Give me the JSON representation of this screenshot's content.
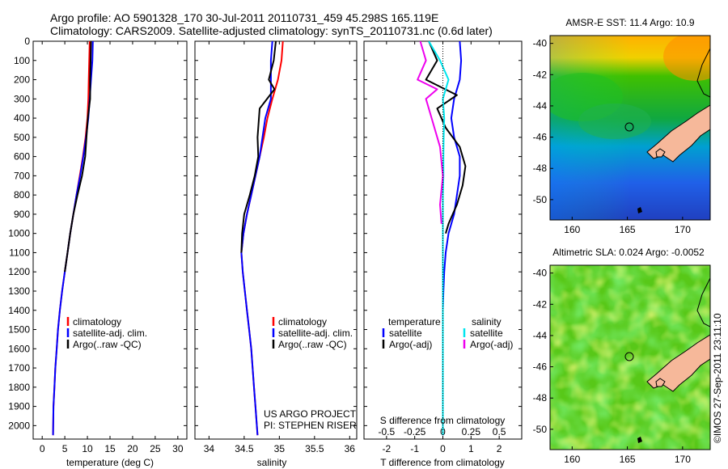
{
  "header": {
    "line1": "Argo profile: AO 5901328_170 30-Jul-2011 20110731_459 45.298S 165.119E",
    "line2": "Climatology: CARS2009. Satellite-adjusted climatology: synTS_20110731.nc (0.6d later)"
  },
  "colors": {
    "climatology": "#ff0000",
    "satellite": "#0000ff",
    "argo": "#000000",
    "salinity_satellite": "#00e5ee",
    "salinity_argo": "#ee00ee",
    "land": "#f6b89a"
  },
  "chart_data": [
    {
      "type": "line",
      "id": "temperature",
      "xlabel": "temperature (deg C)",
      "xlim": [
        -2,
        32
      ],
      "xticks": [
        0,
        5,
        10,
        15,
        20,
        25,
        30
      ],
      "ylim": [
        0,
        2070
      ],
      "yticks": [
        0,
        100,
        200,
        300,
        400,
        500,
        600,
        700,
        800,
        900,
        1000,
        1100,
        1200,
        1300,
        1400,
        1500,
        1600,
        1700,
        1800,
        1900,
        2000
      ],
      "legend": [
        "climatology",
        "satellite-adj. clim.",
        "Argo(..raw -QC)"
      ],
      "series": [
        {
          "name": "climatology",
          "color": "#ff0000",
          "x": [
            10.5,
            10.4,
            10.3,
            10.2,
            10.0,
            9.6,
            9.0,
            8.3,
            7.6,
            6.9,
            6.2,
            5.6,
            5.0,
            4.4,
            3.9,
            3.5,
            3.2,
            2.9,
            2.7,
            2.5,
            2.4
          ],
          "y": [
            0,
            100,
            200,
            300,
            400,
            500,
            600,
            700,
            800,
            900,
            1000,
            1100,
            1200,
            1300,
            1400,
            1500,
            1600,
            1700,
            1800,
            1900,
            2050
          ]
        },
        {
          "name": "satellite-adj. clim.",
          "color": "#0000ff",
          "x": [
            11.2,
            11.1,
            10.8,
            10.5,
            10.2,
            9.7,
            9.1,
            8.4,
            7.6,
            6.9,
            6.2,
            5.6,
            5.0,
            4.4,
            3.9,
            3.5,
            3.2,
            2.9,
            2.7,
            2.5,
            2.4
          ],
          "y": [
            0,
            100,
            200,
            300,
            400,
            500,
            600,
            700,
            800,
            900,
            1000,
            1100,
            1200,
            1300,
            1400,
            1500,
            1600,
            1700,
            1800,
            1900,
            2050
          ]
        },
        {
          "name": "Argo(..raw -QC)",
          "color": "#000000",
          "x": [
            10.8,
            10.7,
            10.6,
            10.6,
            10.1,
            9.8,
            9.5,
            8.8,
            7.8,
            6.9,
            6.2,
            5.6,
            5.0
          ],
          "y": [
            0,
            100,
            200,
            300,
            400,
            500,
            600,
            700,
            800,
            900,
            1000,
            1100,
            1200
          ]
        }
      ]
    },
    {
      "type": "line",
      "id": "salinity",
      "xlabel": "salinity",
      "xlim": [
        33.8,
        36.1
      ],
      "xticks": [
        34,
        34.5,
        35,
        35.5,
        36
      ],
      "ylim": [
        0,
        2070
      ],
      "legend": [
        "climatology",
        "satellite-adj. clim.",
        "Argo(..raw -QC)"
      ],
      "annotation": [
        "US ARGO PROJECT",
        "PI: STEPHEN RISER"
      ],
      "series": [
        {
          "name": "climatology",
          "color": "#ff0000",
          "x": [
            35.05,
            35.03,
            34.98,
            34.9,
            34.83,
            34.78,
            34.72,
            34.66,
            34.6,
            34.54,
            34.49,
            34.46,
            34.48,
            34.51,
            34.54,
            34.57,
            34.6,
            34.62,
            34.64,
            34.66,
            34.69
          ],
          "y": [
            0,
            100,
            200,
            300,
            400,
            500,
            600,
            700,
            800,
            900,
            1000,
            1100,
            1200,
            1300,
            1400,
            1500,
            1600,
            1700,
            1800,
            1900,
            2050
          ]
        },
        {
          "name": "satellite-adj. clim.",
          "color": "#0000ff",
          "x": [
            34.9,
            34.88,
            34.88,
            34.88,
            34.8,
            34.76,
            34.72,
            34.66,
            34.6,
            34.54,
            34.49,
            34.46,
            34.48,
            34.51,
            34.54,
            34.57,
            34.6,
            34.62,
            34.64,
            34.66,
            34.69
          ],
          "y": [
            0,
            100,
            200,
            300,
            400,
            500,
            600,
            700,
            800,
            900,
            1000,
            1100,
            1200,
            1300,
            1400,
            1500,
            1600,
            1700,
            1800,
            1900,
            2050
          ]
        },
        {
          "name": "Argo(..raw -QC)",
          "color": "#000000",
          "x": [
            34.95,
            34.92,
            34.85,
            34.93,
            34.72,
            34.69,
            34.7,
            34.65,
            34.58,
            34.5,
            34.47,
            34.46
          ],
          "y": [
            0,
            100,
            200,
            250,
            350,
            500,
            600,
            700,
            800,
            900,
            1000,
            1100
          ]
        }
      ]
    },
    {
      "type": "line",
      "id": "differences",
      "xlabel": "T difference from climatology",
      "top_axis_label": "S difference from climatology",
      "xlim": [
        -2.8,
        2.8
      ],
      "xticks": [
        -2,
        -1,
        0,
        1,
        2
      ],
      "top_xticks": [
        "-0.5",
        "-0.25",
        "0",
        "0.25",
        "0.5"
      ],
      "ylim": [
        0,
        2070
      ],
      "legend_left_title": "temperature",
      "legend_right_title": "salinity",
      "legend": [
        "satellite",
        "Argo(-adj)",
        "satellite",
        "Argo(-adj)"
      ],
      "series": [
        {
          "name": "satellite",
          "color": "#0000ff",
          "x": [
            0.6,
            0.65,
            0.6,
            0.4,
            0.3,
            0.4,
            0.6,
            0.6,
            0.5,
            0.4,
            0.2,
            0.1,
            0.05,
            0.02,
            0.0,
            0.0,
            0.0,
            0.0,
            0.0,
            0.0,
            0.0
          ],
          "y": [
            0,
            100,
            200,
            300,
            400,
            500,
            600,
            700,
            800,
            900,
            1000,
            1100,
            1200,
            1300,
            1400,
            1500,
            1600,
            1700,
            1800,
            1900,
            2050
          ]
        },
        {
          "name": "Argo(-adj)",
          "color": "#000000",
          "x": [
            -0.5,
            -0.2,
            -0.6,
            0.5,
            -0.2,
            0.1,
            0.6,
            0.8,
            0.7,
            0.5,
            0.2,
            0.1
          ],
          "y": [
            0,
            100,
            200,
            280,
            350,
            450,
            550,
            650,
            750,
            850,
            950,
            1000
          ]
        },
        {
          "name": "satellite",
          "color": "#00e5ee",
          "x": [
            -0.5,
            -0.1,
            0.2,
            0.0,
            0.05,
            0.03,
            0.02,
            0.02,
            0.0,
            0.0,
            0.0,
            0.0,
            0.0,
            0.0,
            0.0,
            0.0,
            0.0,
            0.0,
            0.0,
            0.0,
            0.0
          ],
          "y": [
            0,
            100,
            200,
            300,
            400,
            500,
            600,
            700,
            800,
            900,
            1000,
            1100,
            1200,
            1300,
            1400,
            1500,
            1600,
            1700,
            1800,
            1900,
            2050
          ]
        },
        {
          "name": "Argo(-adj)",
          "color": "#ee00ee",
          "x": [
            -0.8,
            -0.6,
            -0.9,
            -0.2,
            -0.6,
            -0.4,
            -0.1,
            0.0,
            -0.1,
            -0.05
          ],
          "y": [
            0,
            100,
            200,
            250,
            300,
            400,
            550,
            700,
            850,
            950
          ]
        }
      ]
    },
    {
      "type": "heatmap",
      "id": "sst_map",
      "title": "AMSR-E SST: 11.4 Argo: 10.9",
      "xticks": [
        160,
        165,
        170
      ],
      "yticks": [
        -40,
        -42,
        -44,
        -46,
        -48,
        -50
      ],
      "xlim": [
        158,
        172.5
      ],
      "ylim": [
        -51.3,
        -39.5
      ],
      "marker": {
        "lon": 165.1,
        "lat": -45.3
      }
    },
    {
      "type": "heatmap",
      "id": "sla_map",
      "title": "Altimetric SLA: 0.024 Argo: -0.0052",
      "xticks": [
        160,
        165,
        170
      ],
      "yticks": [
        -40,
        -42,
        -44,
        -46,
        -48,
        -50
      ],
      "xlim": [
        158,
        172.5
      ],
      "ylim": [
        -51.3,
        -39.5
      ],
      "marker": {
        "lon": 165.1,
        "lat": -45.3
      }
    }
  ],
  "footer": {
    "credit": "©IMOS 27-Sep-2011 23:11:10"
  }
}
